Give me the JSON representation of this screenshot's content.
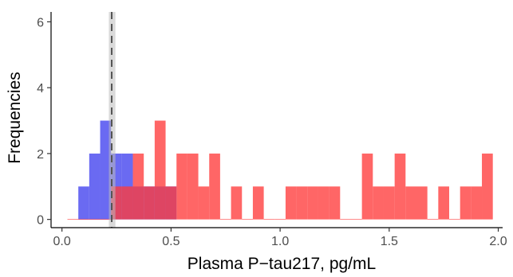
{
  "chart_data": {
    "type": "bar",
    "xlabel": "Plasma P−tau217, pg/mL",
    "ylabel": "Frequencies",
    "xlim": [
      -0.05,
      2.02
    ],
    "ylim": [
      -0.25,
      6.3
    ],
    "x_ticks": [
      0.0,
      0.5,
      1.0,
      1.5,
      2.0
    ],
    "x_tick_labels": [
      "0.0",
      "0.5",
      "1.0",
      "1.5",
      "2.0"
    ],
    "y_ticks": [
      0,
      2,
      4,
      6
    ],
    "y_tick_labels": [
      "0",
      "2",
      "4",
      "6"
    ],
    "grid": false,
    "legend": "none",
    "bin_width": 0.05,
    "series": [
      {
        "color": "#5050f0",
        "opacity": 0.85,
        "bins": [
          {
            "x0": 0.075,
            "count": 1
          },
          {
            "x0": 0.125,
            "count": 2
          },
          {
            "x0": 0.175,
            "count": 3
          },
          {
            "x0": 0.225,
            "count": 2
          },
          {
            "x0": 0.275,
            "count": 2
          },
          {
            "x0": 0.325,
            "count": 1
          },
          {
            "x0": 0.375,
            "count": 1
          },
          {
            "x0": 0.425,
            "count": 1
          },
          {
            "x0": 0.475,
            "count": 1
          }
        ]
      },
      {
        "color": "#ff3b3b",
        "opacity": 0.78,
        "bins": [
          {
            "x0": 0.025,
            "count": 0
          },
          {
            "x0": 0.075,
            "count": 0
          },
          {
            "x0": 0.125,
            "count": 0
          },
          {
            "x0": 0.175,
            "count": 0
          },
          {
            "x0": 0.225,
            "count": 1
          },
          {
            "x0": 0.275,
            "count": 1
          },
          {
            "x0": 0.325,
            "count": 2
          },
          {
            "x0": 0.375,
            "count": 1
          },
          {
            "x0": 0.425,
            "count": 3
          },
          {
            "x0": 0.475,
            "count": 1
          },
          {
            "x0": 0.525,
            "count": 2
          },
          {
            "x0": 0.575,
            "count": 2
          },
          {
            "x0": 0.625,
            "count": 1
          },
          {
            "x0": 0.675,
            "count": 2
          },
          {
            "x0": 0.725,
            "count": 0
          },
          {
            "x0": 0.775,
            "count": 1
          },
          {
            "x0": 0.825,
            "count": 0
          },
          {
            "x0": 0.875,
            "count": 1
          },
          {
            "x0": 0.925,
            "count": 0
          },
          {
            "x0": 0.975,
            "count": 0
          },
          {
            "x0": 1.025,
            "count": 1
          },
          {
            "x0": 1.075,
            "count": 1
          },
          {
            "x0": 1.125,
            "count": 1
          },
          {
            "x0": 1.175,
            "count": 1
          },
          {
            "x0": 1.225,
            "count": 1
          },
          {
            "x0": 1.275,
            "count": 0
          },
          {
            "x0": 1.325,
            "count": 0
          },
          {
            "x0": 1.375,
            "count": 2
          },
          {
            "x0": 1.425,
            "count": 1
          },
          {
            "x0": 1.475,
            "count": 1
          },
          {
            "x0": 1.525,
            "count": 2
          },
          {
            "x0": 1.575,
            "count": 1
          },
          {
            "x0": 1.625,
            "count": 1
          },
          {
            "x0": 1.675,
            "count": 0
          },
          {
            "x0": 1.725,
            "count": 1
          },
          {
            "x0": 1.775,
            "count": 0
          },
          {
            "x0": 1.825,
            "count": 1
          },
          {
            "x0": 1.875,
            "count": 1
          },
          {
            "x0": 1.925,
            "count": 2
          }
        ]
      }
    ],
    "reference_line": {
      "x": 0.228,
      "style": "dashed",
      "color": "#555555"
    },
    "reference_band": {
      "x0": 0.215,
      "x1": 0.245,
      "color": "#bbbbbb",
      "opacity": 0.55
    }
  }
}
